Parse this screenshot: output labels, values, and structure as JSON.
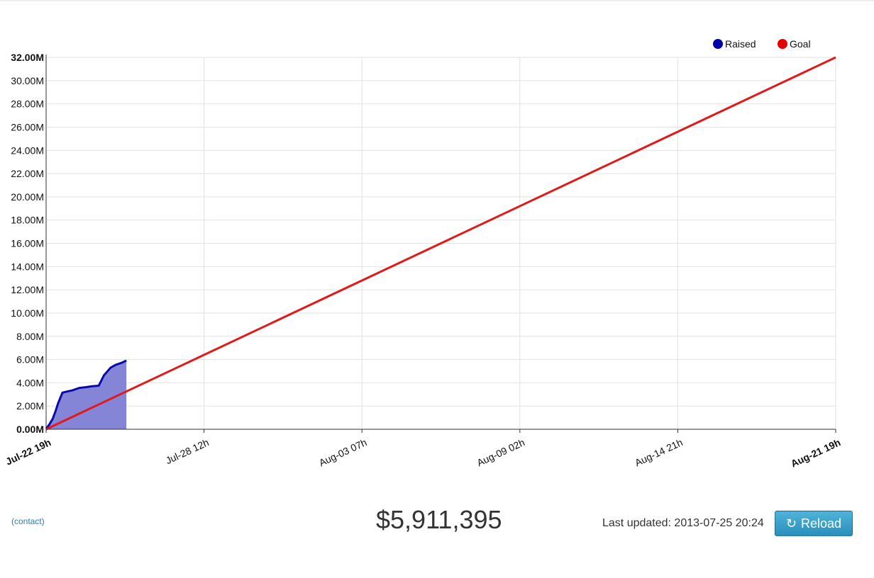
{
  "chart_data": {
    "type": "area",
    "x_labels": [
      "Jul-22 19h",
      "Jul-28 12h",
      "Aug-03 07h",
      "Aug-09 02h",
      "Aug-14 21h",
      "Aug-21 19h"
    ],
    "y_ticks": [
      "0.00M",
      "2.00M",
      "4.00M",
      "6.00M",
      "8.00M",
      "10.00M",
      "12.00M",
      "14.00M",
      "16.00M",
      "18.00M",
      "20.00M",
      "22.00M",
      "24.00M",
      "26.00M",
      "28.00M",
      "30.00M",
      "32.00M"
    ],
    "ylim": [
      0,
      32
    ],
    "grid": true,
    "legend": "top-right",
    "series": [
      {
        "name": "Raised",
        "color": "#0a0aa8",
        "fill": "#8585d8",
        "x_days": [
          0,
          0.12,
          0.25,
          0.35,
          0.45,
          0.62,
          0.8,
          1.0,
          1.25,
          1.5,
          1.75,
          2.0,
          2.2,
          2.45,
          2.65,
          2.85,
          3.05
        ],
        "values": [
          0.05,
          0.4,
          0.9,
          1.5,
          2.2,
          3.15,
          3.25,
          3.35,
          3.55,
          3.62,
          3.7,
          3.75,
          4.65,
          5.3,
          5.55,
          5.7,
          5.91
        ]
      },
      {
        "name": "Goal",
        "color": "#e01a1a",
        "x_days": [
          0,
          30
        ],
        "values": [
          0,
          32
        ]
      }
    ],
    "x_range_days": [
      0,
      30
    ]
  },
  "footer": {
    "contact": "(contact)",
    "total": "$5,911,395",
    "updated": "Last updated: 2013-07-25 20:24",
    "reload_label": "Reload",
    "reload_icon": "refresh-icon"
  }
}
